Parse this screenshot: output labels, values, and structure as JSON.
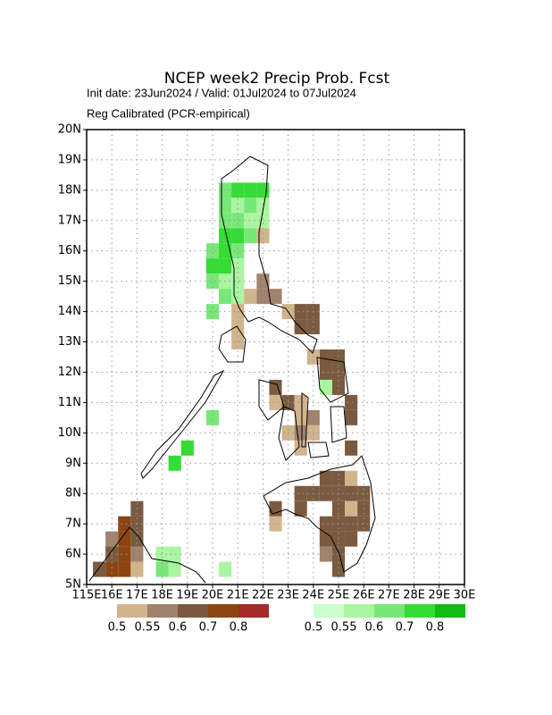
{
  "chart_data": {
    "type": "map",
    "title": "NCEP week2 Precip Prob. Fcst",
    "subtitle": "Init date: 23Jun2024 / Valid: 01Jul2024 to 07Jul2024",
    "note": "Reg Calibrated (PCR-empirical)",
    "xlim": [
      115,
      130
    ],
    "ylim": [
      5,
      20
    ],
    "xticks": [
      {
        "value": 115,
        "label": "115E"
      },
      {
        "value": 116,
        "label": "16E"
      },
      {
        "value": 117,
        "label": "17E"
      },
      {
        "value": 118,
        "label": "18E"
      },
      {
        "value": 119,
        "label": "19E"
      },
      {
        "value": 120,
        "label": "20E"
      },
      {
        "value": 121,
        "label": "21E"
      },
      {
        "value": 122,
        "label": "22E"
      },
      {
        "value": 123,
        "label": "23E"
      },
      {
        "value": 124,
        "label": "24E"
      },
      {
        "value": 125,
        "label": "25E"
      },
      {
        "value": 126,
        "label": "26E"
      },
      {
        "value": 127,
        "label": "27E"
      },
      {
        "value": 128,
        "label": "28E"
      },
      {
        "value": 129,
        "label": "29E"
      },
      {
        "value": 130,
        "label": "30E"
      }
    ],
    "yticks": [
      {
        "value": 5,
        "label": "5N"
      },
      {
        "value": 6,
        "label": "6N"
      },
      {
        "value": 7,
        "label": "7N"
      },
      {
        "value": 8,
        "label": "8N"
      },
      {
        "value": 9,
        "label": "9N"
      },
      {
        "value": 10,
        "label": "10N"
      },
      {
        "value": 11,
        "label": "11N"
      },
      {
        "value": 12,
        "label": "12N"
      },
      {
        "value": 13,
        "label": "13N"
      },
      {
        "value": 14,
        "label": "14N"
      },
      {
        "value": 15,
        "label": "15N"
      },
      {
        "value": 16,
        "label": "16N"
      },
      {
        "value": 17,
        "label": "17N"
      },
      {
        "value": 18,
        "label": "18N"
      },
      {
        "value": 19,
        "label": "19N"
      },
      {
        "value": 20,
        "label": "20N"
      }
    ],
    "grid": true,
    "dry_legend": {
      "levels": [
        0.5,
        0.55,
        0.6,
        0.7,
        0.8
      ],
      "colors": [
        "#d2b48c",
        "#a0826d",
        "#7a5a40",
        "#8b4513",
        "#a52a2a"
      ]
    },
    "wet_legend": {
      "levels": [
        0.5,
        0.55,
        0.6,
        0.7,
        0.8
      ],
      "colors": [
        "#ccffcc",
        "#aaf5a0",
        "#77e877",
        "#33dd33",
        "#11bb11"
      ]
    },
    "wet_cells": [
      [
        120.25,
        17.75,
        0.6
      ],
      [
        120.75,
        17.75,
        0.7
      ],
      [
        121.25,
        17.75,
        0.7
      ],
      [
        121.75,
        17.75,
        0.7
      ],
      [
        120.25,
        17.25,
        0.6
      ],
      [
        120.75,
        17.25,
        0.55
      ],
      [
        121.25,
        17.25,
        0.6
      ],
      [
        121.75,
        17.25,
        0.55
      ],
      [
        120.25,
        16.75,
        0.6
      ],
      [
        120.75,
        16.75,
        0.6
      ],
      [
        121.25,
        16.75,
        0.55
      ],
      [
        121.75,
        16.75,
        0.55
      ],
      [
        120.25,
        16.25,
        0.7
      ],
      [
        120.75,
        16.25,
        0.7
      ],
      [
        121.25,
        16.25,
        0.6
      ],
      [
        119.75,
        15.75,
        0.6
      ],
      [
        120.25,
        15.75,
        0.7
      ],
      [
        120.75,
        15.75,
        0.6
      ],
      [
        119.75,
        15.25,
        0.7
      ],
      [
        120.25,
        15.25,
        0.7
      ],
      [
        120.75,
        15.25,
        0.55
      ],
      [
        119.75,
        14.75,
        0.6
      ],
      [
        120.25,
        14.75,
        0.55
      ],
      [
        120.75,
        14.75,
        0.55
      ],
      [
        120.25,
        14.25,
        0.6
      ],
      [
        120.75,
        14.25,
        0.55
      ],
      [
        119.75,
        13.75,
        0.6
      ],
      [
        124.25,
        11.25,
        0.55
      ],
      [
        119.75,
        10.25,
        0.6
      ],
      [
        118.75,
        9.25,
        0.7
      ],
      [
        118.25,
        8.75,
        0.7
      ],
      [
        117.75,
        5.75,
        0.55
      ],
      [
        118.25,
        5.75,
        0.55
      ],
      [
        117.75,
        5.25,
        0.6
      ],
      [
        118.25,
        5.25,
        0.55
      ],
      [
        120.25,
        5.25,
        0.55
      ]
    ],
    "dry_cells": [
      [
        121.75,
        16.25,
        0.5
      ],
      [
        121.75,
        14.75,
        0.55
      ],
      [
        121.25,
        14.25,
        0.5
      ],
      [
        121.75,
        14.25,
        0.55
      ],
      [
        122.25,
        14.25,
        0.55
      ],
      [
        120.75,
        13.75,
        0.5
      ],
      [
        122.75,
        13.75,
        0.5
      ],
      [
        123.25,
        13.75,
        0.6
      ],
      [
        123.75,
        13.75,
        0.6
      ],
      [
        120.75,
        13.25,
        0.5
      ],
      [
        123.25,
        13.25,
        0.6
      ],
      [
        123.75,
        13.25,
        0.6
      ],
      [
        120.75,
        12.75,
        0.5
      ],
      [
        124.25,
        12.25,
        0.6
      ],
      [
        124.75,
        12.25,
        0.6
      ],
      [
        123.75,
        12.25,
        0.5
      ],
      [
        124.25,
        11.75,
        0.6
      ],
      [
        124.75,
        11.75,
        0.6
      ],
      [
        122.25,
        11.25,
        0.6
      ],
      [
        124.75,
        11.25,
        0.6
      ],
      [
        122.25,
        10.75,
        0.5
      ],
      [
        122.75,
        10.75,
        0.6
      ],
      [
        123.25,
        10.75,
        0.5
      ],
      [
        125.25,
        10.75,
        0.6
      ],
      [
        123.25,
        10.25,
        0.5
      ],
      [
        123.75,
        10.25,
        0.55
      ],
      [
        125.25,
        10.25,
        0.6
      ],
      [
        122.75,
        9.75,
        0.5
      ],
      [
        123.25,
        9.75,
        0.55
      ],
      [
        123.75,
        9.75,
        0.5
      ],
      [
        123.25,
        9.25,
        0.5
      ],
      [
        125.25,
        9.25,
        0.6
      ],
      [
        124.25,
        8.25,
        0.6
      ],
      [
        124.75,
        8.25,
        0.6
      ],
      [
        125.25,
        8.25,
        0.5
      ],
      [
        123.25,
        7.75,
        0.6
      ],
      [
        123.75,
        7.75,
        0.6
      ],
      [
        124.25,
        7.75,
        0.6
      ],
      [
        124.75,
        7.75,
        0.6
      ],
      [
        125.25,
        7.75,
        0.6
      ],
      [
        125.75,
        7.75,
        0.6
      ],
      [
        122.25,
        7.25,
        0.6
      ],
      [
        123.25,
        7.25,
        0.6
      ],
      [
        124.75,
        7.25,
        0.6
      ],
      [
        125.25,
        7.25,
        0.5
      ],
      [
        125.75,
        7.25,
        0.6
      ],
      [
        122.25,
        6.75,
        0.5
      ],
      [
        124.25,
        6.75,
        0.6
      ],
      [
        124.75,
        6.75,
        0.6
      ],
      [
        125.25,
        6.75,
        0.6
      ],
      [
        125.75,
        6.75,
        0.6
      ],
      [
        124.25,
        6.25,
        0.6
      ],
      [
        124.75,
        6.25,
        0.6
      ],
      [
        125.25,
        6.25,
        0.6
      ],
      [
        124.25,
        5.75,
        0.55
      ],
      [
        124.75,
        5.75,
        0.6
      ],
      [
        124.75,
        5.25,
        0.6
      ],
      [
        116.75,
        7.25,
        0.6
      ],
      [
        116.75,
        6.75,
        0.6
      ],
      [
        116.25,
        6.75,
        0.7
      ],
      [
        116.25,
        6.25,
        0.7
      ],
      [
        115.75,
        6.25,
        0.55
      ],
      [
        116.75,
        6.25,
        0.6
      ],
      [
        115.75,
        5.75,
        0.6
      ],
      [
        116.25,
        5.75,
        0.7
      ],
      [
        116.75,
        5.75,
        0.55
      ],
      [
        115.25,
        5.25,
        0.6
      ],
      [
        115.75,
        5.25,
        0.7
      ],
      [
        116.25,
        5.25,
        0.7
      ],
      [
        116.75,
        5.25,
        0.5
      ]
    ]
  }
}
